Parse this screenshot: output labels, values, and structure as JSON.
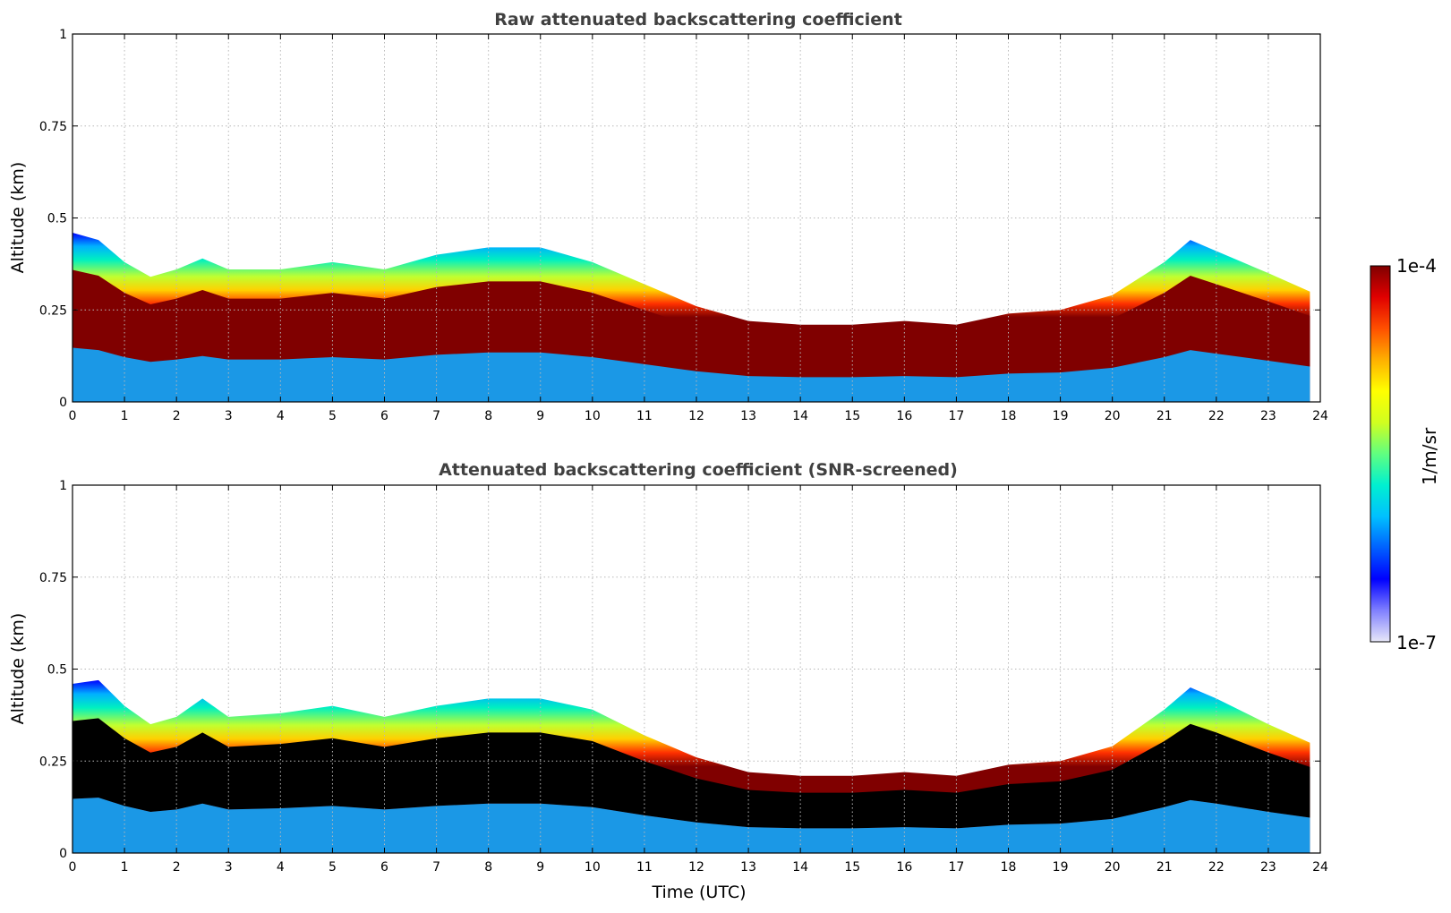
{
  "chart_data": [
    {
      "type": "heatmap",
      "title": "Raw attenuated backscattering coefficient",
      "xlabel": "",
      "ylabel": "Altitude (km)",
      "xlim": [
        0,
        24
      ],
      "ylim": [
        0,
        1
      ],
      "xticks": [
        0,
        1,
        2,
        3,
        4,
        5,
        6,
        7,
        8,
        9,
        10,
        11,
        12,
        13,
        14,
        15,
        16,
        17,
        18,
        19,
        20,
        21,
        22,
        23,
        24
      ],
      "yticks": [
        0,
        0.25,
        0.5,
        0.75,
        1
      ],
      "ytick_labels": [
        "0",
        "0.25",
        "0.5",
        "0.75",
        "1"
      ],
      "grid": true,
      "saturated_color": "#800000",
      "boundary_layer_top_km": {
        "time_utc": [
          0,
          0.5,
          1,
          1.5,
          2,
          2.5,
          3,
          4,
          5,
          6,
          7,
          8,
          9,
          10,
          11,
          12,
          13,
          14,
          15,
          16,
          17,
          18,
          19,
          20,
          21,
          21.5,
          22,
          23,
          23.8
        ],
        "altitude": [
          0.46,
          0.44,
          0.38,
          0.34,
          0.36,
          0.39,
          0.36,
          0.36,
          0.38,
          0.36,
          0.4,
          0.42,
          0.42,
          0.38,
          0.32,
          0.26,
          0.22,
          0.21,
          0.21,
          0.22,
          0.21,
          0.24,
          0.25,
          0.29,
          0.38,
          0.44,
          0.41,
          0.35,
          0.3
        ]
      }
    },
    {
      "type": "heatmap",
      "title": "Attenuated backscattering coefficient (SNR-screened)",
      "xlabel": "Time (UTC)",
      "ylabel": "Altitude (km)",
      "xlim": [
        0,
        24
      ],
      "ylim": [
        0,
        1
      ],
      "xticks": [
        0,
        1,
        2,
        3,
        4,
        5,
        6,
        7,
        8,
        9,
        10,
        11,
        12,
        13,
        14,
        15,
        16,
        17,
        18,
        19,
        20,
        21,
        22,
        23,
        24
      ],
      "yticks": [
        0,
        0.25,
        0.5,
        0.75,
        1
      ],
      "ytick_labels": [
        "0",
        "0.25",
        "0.5",
        "0.75",
        "1"
      ],
      "grid": true,
      "saturated_color": "#000000",
      "boundary_layer_top_km": {
        "time_utc": [
          0,
          0.5,
          1,
          1.5,
          2,
          2.5,
          3,
          4,
          5,
          6,
          7,
          8,
          9,
          10,
          11,
          12,
          13,
          14,
          15,
          16,
          17,
          18,
          19,
          20,
          21,
          21.5,
          22,
          23,
          23.8
        ],
        "altitude": [
          0.46,
          0.47,
          0.4,
          0.35,
          0.37,
          0.42,
          0.37,
          0.38,
          0.4,
          0.37,
          0.4,
          0.42,
          0.42,
          0.39,
          0.32,
          0.26,
          0.22,
          0.21,
          0.21,
          0.22,
          0.21,
          0.24,
          0.25,
          0.29,
          0.39,
          0.45,
          0.42,
          0.35,
          0.3
        ]
      }
    }
  ],
  "colorbar": {
    "max_label": "1e-4",
    "min_label": "1e-7",
    "label": "1/m/sr",
    "stops": [
      "#e8e8f8",
      "#8080ff",
      "#0000ff",
      "#0060ff",
      "#00c0ff",
      "#00f0d0",
      "#60ff80",
      "#d0ff20",
      "#ffff00",
      "#ffb000",
      "#ff5000",
      "#e00000",
      "#800000"
    ]
  }
}
